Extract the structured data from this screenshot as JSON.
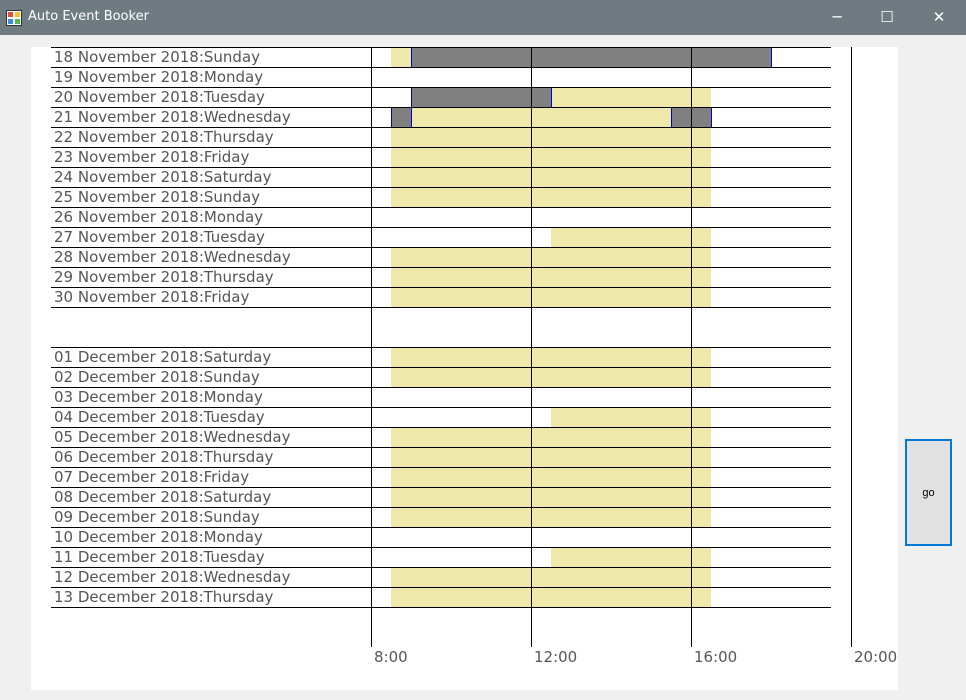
{
  "window": {
    "title": "Auto Event Booker",
    "minimize_glyph": "─",
    "maximize_glyph": "☐",
    "close_glyph": "✕"
  },
  "chart_data": {
    "type": "table",
    "x_ticks": [
      "8:00",
      "12:00",
      "16:00",
      "20:00"
    ],
    "colors": {
      "available": "#eee8aa",
      "booked": "#808080",
      "booked_border": "#0000cd"
    },
    "rows": [
      {
        "label": "18 November 2018:Sunday",
        "available": [
          [
            8.5,
            16.5
          ]
        ],
        "booked": [
          [
            9.0,
            18.0
          ]
        ]
      },
      {
        "label": "19 November 2018:Monday",
        "available": [],
        "booked": []
      },
      {
        "label": "20 November 2018:Tuesday",
        "available": [
          [
            9.0,
            16.5
          ]
        ],
        "booked": [
          [
            9.0,
            12.5
          ]
        ]
      },
      {
        "label": "21 November 2018:Wednesday",
        "available": [
          [
            8.5,
            16.5
          ]
        ],
        "booked": [
          [
            8.5,
            9.0
          ],
          [
            15.5,
            16.5
          ]
        ]
      },
      {
        "label": "22 November 2018:Thursday",
        "available": [
          [
            8.5,
            16.5
          ]
        ],
        "booked": []
      },
      {
        "label": "23 November 2018:Friday",
        "available": [
          [
            8.5,
            16.5
          ]
        ],
        "booked": []
      },
      {
        "label": "24 November 2018:Saturday",
        "available": [
          [
            8.5,
            16.5
          ]
        ],
        "booked": []
      },
      {
        "label": "25 November 2018:Sunday",
        "available": [
          [
            8.5,
            16.5
          ]
        ],
        "booked": []
      },
      {
        "label": "26 November 2018:Monday",
        "available": [],
        "booked": []
      },
      {
        "label": "27 November 2018:Tuesday",
        "available": [
          [
            12.5,
            16.5
          ]
        ],
        "booked": []
      },
      {
        "label": "28 November 2018:Wednesday",
        "available": [
          [
            8.5,
            16.5
          ]
        ],
        "booked": []
      },
      {
        "label": "29 November 2018:Thursday",
        "available": [
          [
            8.5,
            16.5
          ]
        ],
        "booked": []
      },
      {
        "label": "30 November 2018:Friday",
        "available": [
          [
            8.5,
            16.5
          ]
        ],
        "booked": []
      },
      {
        "label": "01 December 2018:Saturday",
        "available": [
          [
            8.5,
            16.5
          ]
        ],
        "booked": []
      },
      {
        "label": "02 December 2018:Sunday",
        "available": [
          [
            8.5,
            16.5
          ]
        ],
        "booked": []
      },
      {
        "label": "03 December 2018:Monday",
        "available": [],
        "booked": []
      },
      {
        "label": "04 December 2018:Tuesday",
        "available": [
          [
            12.5,
            16.5
          ]
        ],
        "booked": []
      },
      {
        "label": "05 December 2018:Wednesday",
        "available": [
          [
            8.5,
            16.5
          ]
        ],
        "booked": []
      },
      {
        "label": "06 December 2018:Thursday",
        "available": [
          [
            8.5,
            16.5
          ]
        ],
        "booked": []
      },
      {
        "label": "07 December 2018:Friday",
        "available": [
          [
            8.5,
            16.5
          ]
        ],
        "booked": []
      },
      {
        "label": "08 December 2018:Saturday",
        "available": [
          [
            8.5,
            16.5
          ]
        ],
        "booked": []
      },
      {
        "label": "09 December 2018:Sunday",
        "available": [
          [
            8.5,
            16.5
          ]
        ],
        "booked": []
      },
      {
        "label": "10 December 2018:Monday",
        "available": [],
        "booked": []
      },
      {
        "label": "11 December 2018:Tuesday",
        "available": [
          [
            12.5,
            16.5
          ]
        ],
        "booked": []
      },
      {
        "label": "12 December 2018:Wednesday",
        "available": [
          [
            8.5,
            16.5
          ]
        ],
        "booked": []
      },
      {
        "label": "13 December 2018:Thursday",
        "available": [
          [
            8.5,
            16.5
          ]
        ],
        "booked": []
      }
    ]
  },
  "actions": {
    "go_label": "go"
  }
}
